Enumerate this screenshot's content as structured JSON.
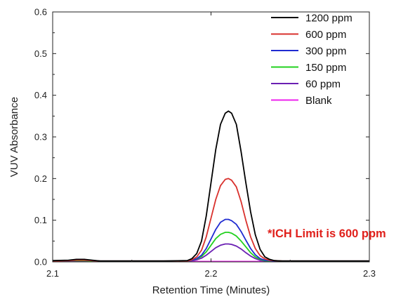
{
  "chart_data": {
    "type": "line",
    "title": "",
    "xlabel": "Retention Time (Minutes)",
    "ylabel": "VUV Absorbance",
    "xlim": [
      2.1,
      2.3
    ],
    "ylim": [
      0,
      0.6
    ],
    "x_ticks": [
      "2.1",
      "2.2",
      "2.3"
    ],
    "y_ticks": [
      "0.0",
      "0.1",
      "0.2",
      "0.3",
      "0.4",
      "0.5",
      "0.6"
    ],
    "grid": false,
    "legend_position": "top-right",
    "annotation": {
      "text": "*ICH Limit is 600 ppm",
      "color": "#e0201b"
    },
    "x": [
      2.1,
      2.11,
      2.115,
      2.12,
      2.125,
      2.13,
      2.15,
      2.17,
      2.185,
      2.188,
      2.191,
      2.194,
      2.197,
      2.2,
      2.203,
      2.206,
      2.209,
      2.211,
      2.213,
      2.216,
      2.219,
      2.222,
      2.225,
      2.228,
      2.231,
      2.234,
      2.237,
      2.24,
      2.245,
      2.25,
      2.27,
      2.3
    ],
    "series": [
      {
        "name": "1200 ppm",
        "color": "#000000",
        "values": [
          0.003,
          0.004,
          0.006,
          0.006,
          0.004,
          0.002,
          0.002,
          0.002,
          0.003,
          0.008,
          0.02,
          0.05,
          0.11,
          0.19,
          0.27,
          0.33,
          0.357,
          0.362,
          0.357,
          0.33,
          0.265,
          0.19,
          0.12,
          0.065,
          0.03,
          0.012,
          0.006,
          0.003,
          0.002,
          0.002,
          0.002,
          0.002
        ]
      },
      {
        "name": "600 ppm",
        "color": "#d9312d",
        "values": [
          0.002,
          0.003,
          0.004,
          0.004,
          0.003,
          0.002,
          0.002,
          0.002,
          0.002,
          0.005,
          0.012,
          0.028,
          0.06,
          0.105,
          0.15,
          0.183,
          0.198,
          0.2,
          0.196,
          0.18,
          0.145,
          0.1,
          0.06,
          0.032,
          0.015,
          0.007,
          0.004,
          0.003,
          0.002,
          0.002,
          0.002,
          0.002
        ]
      },
      {
        "name": "300 ppm",
        "color": "#1f2bd1",
        "values": [
          0.002,
          0.003,
          0.004,
          0.004,
          0.003,
          0.002,
          0.002,
          0.002,
          0.002,
          0.004,
          0.008,
          0.016,
          0.032,
          0.055,
          0.078,
          0.095,
          0.102,
          0.102,
          0.099,
          0.09,
          0.073,
          0.052,
          0.032,
          0.017,
          0.008,
          0.004,
          0.003,
          0.002,
          0.002,
          0.002,
          0.002,
          0.002
        ]
      },
      {
        "name": "150 ppm",
        "color": "#22d11f",
        "values": [
          0.002,
          0.003,
          0.003,
          0.003,
          0.002,
          0.002,
          0.002,
          0.002,
          0.002,
          0.004,
          0.007,
          0.013,
          0.024,
          0.04,
          0.056,
          0.066,
          0.071,
          0.071,
          0.069,
          0.062,
          0.05,
          0.036,
          0.022,
          0.012,
          0.006,
          0.003,
          0.002,
          0.002,
          0.002,
          0.002,
          0.002,
          0.002
        ]
      },
      {
        "name": "60 ppm",
        "color": "#6a1fb3",
        "values": [
          0.001,
          0.002,
          0.002,
          0.002,
          0.002,
          0.001,
          0.001,
          0.001,
          0.002,
          0.003,
          0.005,
          0.009,
          0.016,
          0.025,
          0.034,
          0.04,
          0.043,
          0.043,
          0.042,
          0.038,
          0.031,
          0.022,
          0.014,
          0.008,
          0.004,
          0.002,
          0.002,
          0.001,
          0.001,
          0.001,
          0.001,
          0.001
        ]
      },
      {
        "name": "Blank",
        "color": "#ee22ee",
        "values": [
          0.001,
          0.001,
          0.001,
          0.001,
          0.001,
          0.001,
          0.001,
          0.001,
          0.001,
          0.001,
          0.001,
          0.001,
          0.001,
          0.001,
          0.001,
          0.001,
          0.001,
          0.001,
          0.001,
          0.001,
          0.001,
          0.001,
          0.001,
          0.001,
          0.001,
          0.001,
          0.001,
          0.001,
          0.001,
          0.001,
          0.001,
          0.001
        ]
      }
    ]
  }
}
